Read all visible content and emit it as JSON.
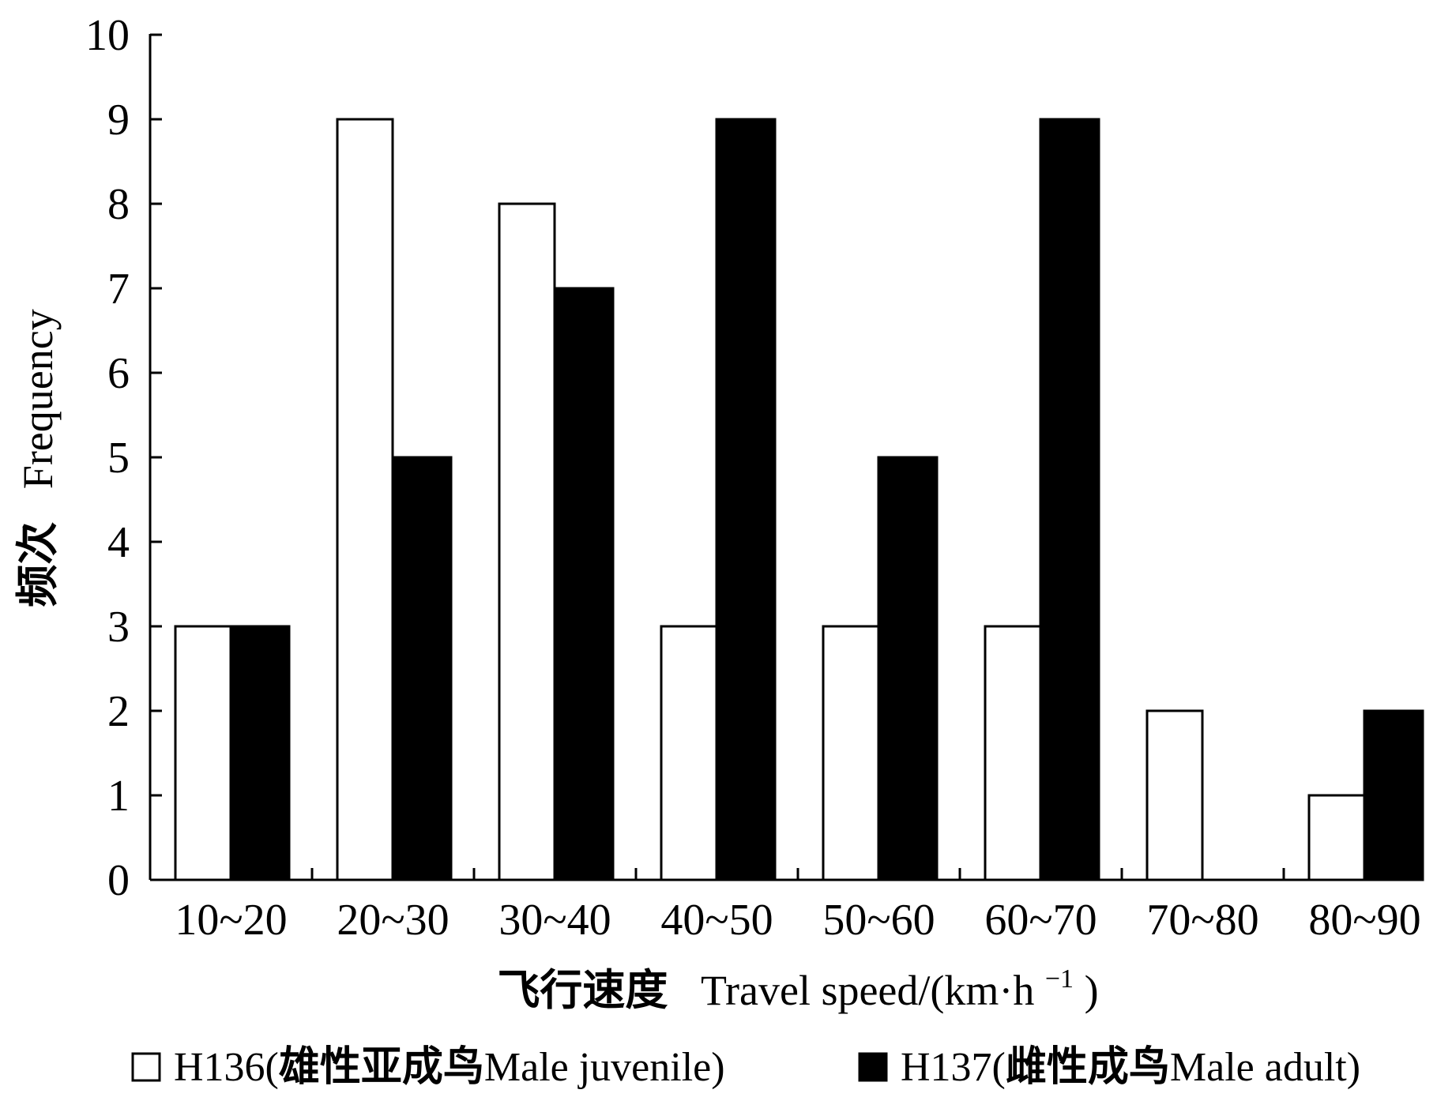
{
  "chart_data": {
    "type": "bar",
    "categories": [
      "10~20",
      "20~30",
      "30~40",
      "40~50",
      "50~60",
      "60~70",
      "70~80",
      "80~90"
    ],
    "series": [
      {
        "name": "H136(雄性亚成鸟Male juvenile)",
        "values": [
          3,
          9,
          8,
          3,
          3,
          3,
          2,
          1
        ],
        "color": "#ffffff"
      },
      {
        "name": "H137(雌性成鸟Male adult)",
        "values": [
          3,
          5,
          7,
          9,
          5,
          9,
          0,
          2
        ],
        "color": "#000000"
      }
    ],
    "yticks": [
      0,
      1,
      2,
      3,
      4,
      5,
      6,
      7,
      8,
      9,
      10
    ],
    "ylim": [
      0,
      10
    ],
    "xlabel": {
      "zh": "飞行速度",
      "en": "Travel speed/(km·h",
      "sup": "−1",
      "end": ")"
    },
    "ylabel": {
      "zh": "频次",
      "en": "Frequency"
    },
    "legend": "bottom",
    "grid": false
  }
}
